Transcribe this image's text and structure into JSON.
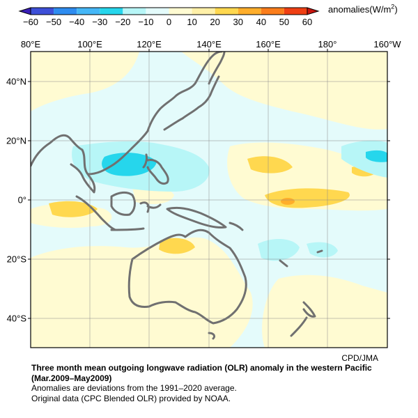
{
  "colorbar": {
    "ticks": [
      "−60",
      "−50",
      "−40",
      "−30",
      "−20",
      "−10",
      "0",
      "10",
      "20",
      "30",
      "40",
      "50",
      "60"
    ],
    "colors": [
      "#3d4fd8",
      "#2e8cf0",
      "#45b7f7",
      "#26d6ec",
      "#b7f6f7",
      "#e4fbfb",
      "#fffbd2",
      "#fff0a8",
      "#ffd84f",
      "#ffae2b",
      "#fb7d1b",
      "#ef3f13"
    ],
    "units_label": "anomalies(W/m",
    "units_sup": "2",
    "units_close": ")"
  },
  "map": {
    "lon_labels": [
      "80°E",
      "100°E",
      "120°E",
      "140°E",
      "160°E",
      "180°",
      "160°W"
    ],
    "lat_labels": [
      "40°N",
      "20°N",
      "0°",
      "20°S",
      "40°S"
    ],
    "credit": "CPD/JMA"
  },
  "caption": {
    "title_line1": "Three month mean outgoing longwave radiation (OLR) anomaly in the western Pacific",
    "title_line2": "(Mar.2009–May2009)",
    "note1": "Anomalies are deviations from the 1991–2020 average.",
    "note2": "Original data (CPC Blended OLR) provided by NOAA."
  }
}
